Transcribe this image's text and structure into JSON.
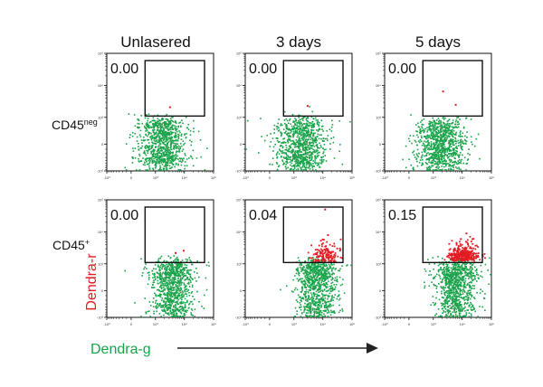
{
  "chart_data": {
    "type": "scatter",
    "columns": [
      "Unlasered",
      "3 days",
      "5 days"
    ],
    "rows": [
      {
        "label": "CD45",
        "superscript": "neg"
      },
      {
        "label": "CD45",
        "superscript": "+"
      }
    ],
    "xlabel": "Dendra-g",
    "ylabel": "Dendra-r",
    "xlabel_color": "#1aa34a",
    "ylabel_color": "#e31b23",
    "scale": "biexponential",
    "xlim": [
      -1000,
      100000
    ],
    "ylim": [
      -1000,
      100000
    ],
    "x_tick_labels": [
      "-10^3",
      "0",
      "10^3",
      "10^4",
      "10^5"
    ],
    "y_tick_labels": [
      "-10^3",
      "0",
      "10^3",
      "10^4",
      "10^5"
    ],
    "tick_values": [
      -1000,
      0,
      1000,
      10000,
      100000
    ],
    "gate": {
      "x": [
        400,
        100000
      ],
      "y": [
        1100,
        100000
      ]
    },
    "panels": [
      {
        "row": 0,
        "col": 0,
        "gate_percent": "0.00",
        "pop_y": 0,
        "pop_spread_y": 420,
        "pop_x": 1800,
        "pop_spread_x": 0.9,
        "red_cluster": false,
        "red_points": [
          [
            3200,
            2100
          ]
        ],
        "green_outliers": []
      },
      {
        "row": 0,
        "col": 1,
        "gate_percent": "0.00",
        "pop_y": 0,
        "pop_spread_y": 420,
        "pop_x": 1800,
        "pop_spread_x": 0.9,
        "red_cluster": false,
        "red_points": [
          [
            3000,
            2300
          ]
        ],
        "green_outliers": []
      },
      {
        "row": 0,
        "col": 2,
        "gate_percent": "0.00",
        "pop_y": 0,
        "pop_spread_y": 420,
        "pop_x": 1800,
        "pop_spread_x": 0.9,
        "red_cluster": false,
        "red_points": [
          [
            2200,
            6500
          ],
          [
            6000,
            2500
          ]
        ],
        "green_outliers": []
      },
      {
        "row": 1,
        "col": 0,
        "gate_percent": "0.00",
        "pop_y": 150,
        "pop_spread_y": 520,
        "pop_x": 4000,
        "pop_spread_x": 0.75,
        "red_cluster": false,
        "red_points": [
          [
            5000,
            2200
          ],
          [
            9500,
            2600
          ]
        ],
        "green_outliers": [
          [
            7000,
            1000
          ],
          [
            4000,
            900
          ]
        ]
      },
      {
        "row": 1,
        "col": 1,
        "gate_percent": "0.04",
        "pop_y": 150,
        "pop_spread_y": 520,
        "pop_x": 6000,
        "pop_spread_x": 0.75,
        "red_cluster": true,
        "red_center": [
          12000,
          1500
        ],
        "red_count": 140,
        "red_points": [
          [
            12000,
            50000
          ],
          [
            15000,
            8000
          ]
        ],
        "green_outliers": []
      },
      {
        "row": 1,
        "col": 2,
        "gate_percent": "0.15",
        "pop_y": 150,
        "pop_spread_y": 520,
        "pop_x": 6000,
        "pop_spread_x": 0.75,
        "red_cluster": true,
        "red_center": [
          11000,
          1700
        ],
        "red_count": 320,
        "red_points": [
          [
            14000,
            9000
          ],
          [
            9000,
            6000
          ]
        ],
        "green_outliers": []
      }
    ],
    "colors": {
      "population": "#1aa34a",
      "gated": "#e31b23",
      "gate": "#111111"
    }
  }
}
